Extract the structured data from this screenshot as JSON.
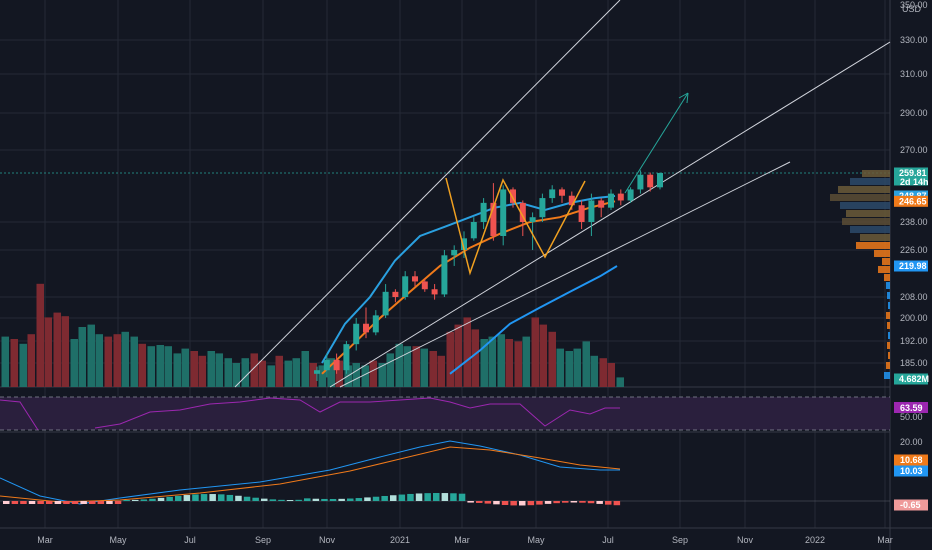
{
  "header": {
    "currency": "USD"
  },
  "colors": {
    "background": "#131722",
    "grid": "#252a36",
    "up": "#26a69a",
    "down": "#ef5350",
    "vol_up": "#1f6f68",
    "vol_down": "#7e2a31",
    "sma_fast": "#2aa0e0",
    "sma_slow": "#f07a1a",
    "sma_long": "#2196f3",
    "rsi": "#9c27b0",
    "trendline": "#d1d4dc",
    "arrow": "#26a69a",
    "pattern": "#f0a020"
  },
  "chart_data": {
    "type": "candlestick",
    "interval": "weekly",
    "price_axis": {
      "ticks": [
        "350.00",
        "330.00",
        "310.00",
        "290.00",
        "270.00",
        "238.00",
        "226.00",
        "208.00",
        "200.00",
        "192.00",
        "185.00"
      ],
      "tags": [
        {
          "label": "259.81",
          "sub": "2d 14h",
          "value": 259.81,
          "color": "#26a69a"
        },
        {
          "label": "248.87",
          "value": 248.87,
          "color": "#2aa0e0"
        },
        {
          "label": "246.65",
          "value": 246.65,
          "color": "#f07a1a"
        },
        {
          "label": "219.98",
          "value": 219.98,
          "color": "#2196f3"
        },
        {
          "label": "4.682M",
          "pane": "volume",
          "color": "#26a69a"
        }
      ]
    },
    "time_axis": {
      "labels": [
        "Mar",
        "May",
        "Jul",
        "Sep",
        "Nov",
        "2021",
        "Mar",
        "May",
        "Jul",
        "Sep",
        "Nov",
        "2022",
        "Mar"
      ]
    },
    "candles": [
      [
        182,
        184,
        180,
        183
      ],
      [
        183,
        188,
        181,
        186
      ],
      [
        186,
        188,
        182,
        183
      ],
      [
        183,
        192,
        182,
        191
      ],
      [
        191,
        200,
        189,
        198
      ],
      [
        198,
        204,
        193,
        195
      ],
      [
        195,
        203,
        194,
        201
      ],
      [
        201,
        213,
        200,
        210
      ],
      [
        210,
        211,
        206,
        208
      ],
      [
        208,
        218,
        207,
        216
      ],
      [
        216,
        218,
        212,
        214
      ],
      [
        214,
        215,
        210,
        211
      ],
      [
        211,
        213,
        207,
        209
      ],
      [
        209,
        226,
        208,
        224
      ],
      [
        224,
        228,
        220,
        226
      ],
      [
        226,
        234,
        223,
        231
      ],
      [
        231,
        240,
        230,
        238
      ],
      [
        238,
        248,
        235,
        246
      ],
      [
        246,
        255,
        230,
        232
      ],
      [
        232,
        254,
        228,
        252
      ],
      [
        252,
        253,
        244,
        246
      ],
      [
        246,
        247,
        232,
        238
      ],
      [
        238,
        242,
        226,
        240
      ],
      [
        240,
        250,
        238,
        248
      ],
      [
        248,
        254,
        246,
        252
      ],
      [
        252,
        253,
        246,
        249
      ],
      [
        249,
        251,
        243,
        245
      ],
      [
        245,
        247,
        235,
        238
      ],
      [
        238,
        250,
        232,
        247
      ],
      [
        247,
        248,
        240,
        244
      ],
      [
        244,
        252,
        243,
        250
      ],
      [
        250,
        252,
        245,
        247
      ],
      [
        247,
        253,
        246,
        252
      ],
      [
        252,
        261,
        250,
        259
      ],
      [
        259,
        260,
        251,
        253
      ],
      [
        253,
        260,
        252,
        259.81
      ]
    ],
    "candle_start_x": 265,
    "candle_spacing": 9.8,
    "series": [
      {
        "name": "SMA fast",
        "color": "#2aa0e0",
        "x": [
          322,
          345,
          370,
          395,
          420,
          445,
          470,
          495,
          520,
          545,
          570,
          595,
          615
        ],
        "y": [
          185,
          198,
          208,
          222,
          232,
          236,
          240,
          244,
          246,
          243,
          246,
          248,
          248.87
        ]
      },
      {
        "name": "SMA slow",
        "color": "#f07a1a",
        "x": [
          322,
          350,
          380,
          410,
          440,
          470,
          500,
          530,
          560,
          590,
          615
        ],
        "y": [
          182,
          190,
          200,
          210,
          220,
          227,
          233,
          238,
          240,
          244,
          246.65
        ]
      },
      {
        "name": "SMA long",
        "color": "#2196f3",
        "x": [
          450,
          480,
          510,
          540,
          570,
          600,
          617
        ],
        "y": [
          182,
          189,
          198,
          204,
          210,
          216,
          219.98
        ]
      }
    ],
    "volume": [
      {
        "x": 5,
        "v": 0.42,
        "dir": "up"
      },
      {
        "x": 14,
        "v": 0.4,
        "dir": "down"
      },
      {
        "x": 23,
        "v": 0.36,
        "dir": "up"
      },
      {
        "x": 31,
        "v": 0.44,
        "dir": "down"
      },
      {
        "x": 40,
        "v": 0.86,
        "dir": "down"
      },
      {
        "x": 48,
        "v": 0.58,
        "dir": "down"
      },
      {
        "x": 57,
        "v": 0.62,
        "dir": "down"
      },
      {
        "x": 65,
        "v": 0.59,
        "dir": "down"
      },
      {
        "x": 74,
        "v": 0.4,
        "dir": "up"
      },
      {
        "x": 82,
        "v": 0.5,
        "dir": "up"
      },
      {
        "x": 91,
        "v": 0.52,
        "dir": "up"
      },
      {
        "x": 99,
        "v": 0.44,
        "dir": "up"
      },
      {
        "x": 108,
        "v": 0.42,
        "dir": "down"
      },
      {
        "x": 117,
        "v": 0.44,
        "dir": "down"
      },
      {
        "x": 125,
        "v": 0.46,
        "dir": "up"
      },
      {
        "x": 134,
        "v": 0.42,
        "dir": "up"
      },
      {
        "x": 142,
        "v": 0.36,
        "dir": "down"
      },
      {
        "x": 151,
        "v": 0.34,
        "dir": "up"
      },
      {
        "x": 160,
        "v": 0.35,
        "dir": "up"
      },
      {
        "x": 168,
        "v": 0.34,
        "dir": "up"
      },
      {
        "x": 177,
        "v": 0.28,
        "dir": "up"
      },
      {
        "x": 185,
        "v": 0.32,
        "dir": "up"
      },
      {
        "x": 194,
        "v": 0.3,
        "dir": "down"
      },
      {
        "x": 202,
        "v": 0.26,
        "dir": "down"
      },
      {
        "x": 211,
        "v": 0.3,
        "dir": "up"
      },
      {
        "x": 219,
        "v": 0.28,
        "dir": "up"
      },
      {
        "x": 228,
        "v": 0.24,
        "dir": "up"
      },
      {
        "x": 236,
        "v": 0.2,
        "dir": "up"
      },
      {
        "x": 245,
        "v": 0.24,
        "dir": "up"
      },
      {
        "x": 254,
        "v": 0.28,
        "dir": "down"
      },
      {
        "x": 262,
        "v": 0.22,
        "dir": "down"
      },
      {
        "x": 271,
        "v": 0.18,
        "dir": "up"
      },
      {
        "x": 279,
        "v": 0.26,
        "dir": "down"
      },
      {
        "x": 288,
        "v": 0.22,
        "dir": "up"
      },
      {
        "x": 296,
        "v": 0.24,
        "dir": "up"
      },
      {
        "x": 305,
        "v": 0.3,
        "dir": "up"
      },
      {
        "x": 313,
        "v": 0.2,
        "dir": "down"
      },
      {
        "x": 322,
        "v": 0.18,
        "dir": "up"
      },
      {
        "x": 331,
        "v": 0.24,
        "dir": "up"
      },
      {
        "x": 339,
        "v": 0.22,
        "dir": "down"
      },
      {
        "x": 348,
        "v": 0.18,
        "dir": "up"
      },
      {
        "x": 356,
        "v": 0.2,
        "dir": "up"
      },
      {
        "x": 365,
        "v": 0.18,
        "dir": "up"
      },
      {
        "x": 373,
        "v": 0.22,
        "dir": "down"
      },
      {
        "x": 382,
        "v": 0.2,
        "dir": "up"
      },
      {
        "x": 390,
        "v": 0.28,
        "dir": "up"
      },
      {
        "x": 399,
        "v": 0.36,
        "dir": "up"
      },
      {
        "x": 407,
        "v": 0.34,
        "dir": "up"
      },
      {
        "x": 416,
        "v": 0.34,
        "dir": "down"
      },
      {
        "x": 424,
        "v": 0.32,
        "dir": "up"
      },
      {
        "x": 433,
        "v": 0.3,
        "dir": "down"
      },
      {
        "x": 441,
        "v": 0.26,
        "dir": "down"
      },
      {
        "x": 450,
        "v": 0.46,
        "dir": "down"
      },
      {
        "x": 458,
        "v": 0.52,
        "dir": "down"
      },
      {
        "x": 467,
        "v": 0.58,
        "dir": "down"
      },
      {
        "x": 475,
        "v": 0.48,
        "dir": "down"
      },
      {
        "x": 484,
        "v": 0.4,
        "dir": "up"
      },
      {
        "x": 492,
        "v": 0.42,
        "dir": "up"
      },
      {
        "x": 501,
        "v": 0.44,
        "dir": "up"
      },
      {
        "x": 509,
        "v": 0.4,
        "dir": "down"
      },
      {
        "x": 518,
        "v": 0.38,
        "dir": "down"
      },
      {
        "x": 526,
        "v": 0.42,
        "dir": "up"
      },
      {
        "x": 535,
        "v": 0.58,
        "dir": "down"
      },
      {
        "x": 543,
        "v": 0.52,
        "dir": "down"
      },
      {
        "x": 552,
        "v": 0.46,
        "dir": "down"
      },
      {
        "x": 560,
        "v": 0.32,
        "dir": "up"
      },
      {
        "x": 569,
        "v": 0.3,
        "dir": "up"
      },
      {
        "x": 577,
        "v": 0.32,
        "dir": "up"
      },
      {
        "x": 586,
        "v": 0.38,
        "dir": "up"
      },
      {
        "x": 594,
        "v": 0.26,
        "dir": "up"
      },
      {
        "x": 603,
        "v": 0.24,
        "dir": "down"
      },
      {
        "x": 611,
        "v": 0.2,
        "dir": "down"
      },
      {
        "x": 620,
        "v": 0.08,
        "dir": "up"
      }
    ],
    "rsi": {
      "value_label": "63.59",
      "mid_label": "50.00"
    },
    "macd": {
      "ticks": [
        "20.00",
        "0.00"
      ],
      "tags": [
        {
          "label": "10.68",
          "color": "#f07a1a"
        },
        {
          "label": "10.03",
          "color": "#2196f3"
        },
        {
          "label": "-0.65",
          "color": "#ef9a9a"
        }
      ]
    }
  }
}
